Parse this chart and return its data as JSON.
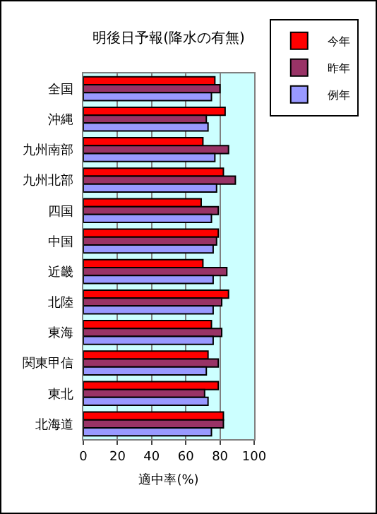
{
  "chart_data": {
    "type": "bar",
    "orientation": "horizontal",
    "title": "明後日予報(降水の有無)",
    "xlabel": "適中率(%)",
    "categories": [
      "全国",
      "沖縄",
      "九州南部",
      "九州北部",
      "四国",
      "中国",
      "近畿",
      "北陸",
      "東海",
      "関東甲信",
      "東北",
      "北海道"
    ],
    "series": [
      {
        "name": "今年",
        "color": "#ff0000",
        "values": [
          77,
          83,
          70,
          82,
          69,
          79,
          70,
          85,
          75,
          73,
          79,
          82
        ]
      },
      {
        "name": "昨年",
        "color": "#993366",
        "values": [
          80,
          72,
          85,
          89,
          79,
          78,
          84,
          81,
          81,
          79,
          71,
          82
        ]
      },
      {
        "name": "例年",
        "color": "#9999ff",
        "values": [
          75,
          73,
          77,
          78,
          75,
          76,
          76,
          76,
          76,
          72,
          73,
          75
        ]
      }
    ],
    "xlim": [
      0,
      100
    ],
    "xticks": [
      0,
      20,
      40,
      60,
      80,
      100
    ],
    "grid": "x",
    "legend": "top right"
  }
}
